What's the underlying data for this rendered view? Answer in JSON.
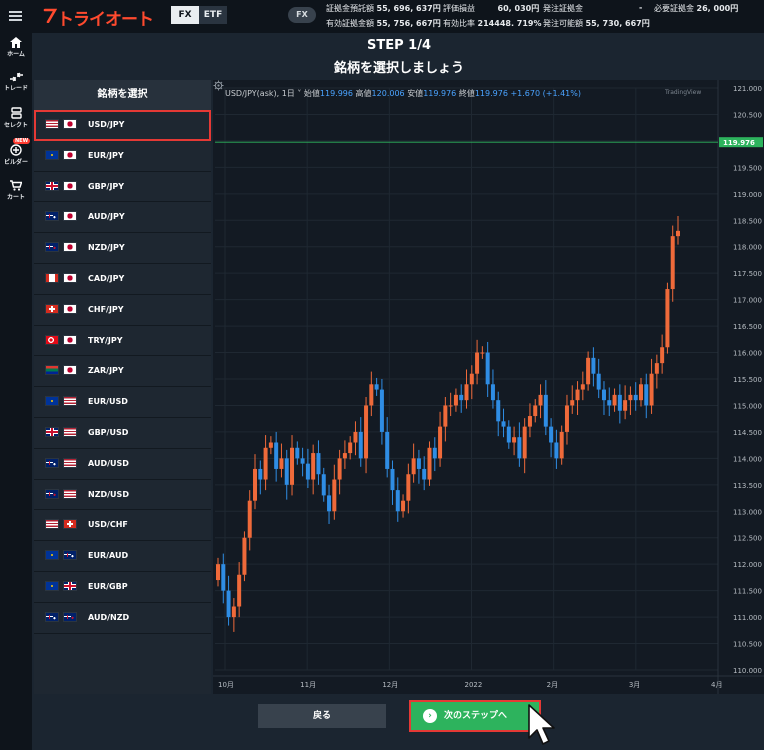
{
  "header": {
    "logo": "トライオート",
    "mode_tabs": [
      "FX",
      "ETF"
    ],
    "mode_pill": "FX",
    "account": {
      "row1": [
        {
          "label": "証拠金預託額",
          "value": "55, 696, 637円"
        },
        {
          "label": "評価損益",
          "value": "60, 030円"
        },
        {
          "label": "発注証拠金",
          "value": "-"
        },
        {
          "label": "必要証拠金",
          "value": "26, 000円"
        }
      ],
      "row2": [
        {
          "label": "有効証拠金額",
          "value": "55, 756, 667円"
        },
        {
          "label": "有効比率",
          "value": "214448. 719%"
        },
        {
          "label": "発注可能額",
          "value": "55, 730, 667円"
        }
      ]
    }
  },
  "nav": {
    "items": [
      {
        "label": "ホーム",
        "icon": "home-icon"
      },
      {
        "label": "トレード",
        "icon": "trade-icon"
      },
      {
        "label": "セレクト",
        "icon": "select-icon"
      },
      {
        "label": "ビルダー",
        "icon": "builder-icon",
        "badge": "NEW"
      },
      {
        "label": "カート",
        "icon": "cart-icon"
      }
    ]
  },
  "step": {
    "title": "STEP 1/4",
    "subtitle": "銘柄を選択しましょう"
  },
  "symbols": {
    "heading": "銘柄を選択",
    "selected_index": 0,
    "items": [
      {
        "label": "USD/JPY",
        "flags": [
          "us",
          "jp"
        ]
      },
      {
        "label": "EUR/JPY",
        "flags": [
          "eu",
          "jp"
        ]
      },
      {
        "label": "GBP/JPY",
        "flags": [
          "gb",
          "jp"
        ]
      },
      {
        "label": "AUD/JPY",
        "flags": [
          "au",
          "jp"
        ]
      },
      {
        "label": "NZD/JPY",
        "flags": [
          "nz",
          "jp"
        ]
      },
      {
        "label": "CAD/JPY",
        "flags": [
          "ca",
          "jp"
        ]
      },
      {
        "label": "CHF/JPY",
        "flags": [
          "ch",
          "jp"
        ]
      },
      {
        "label": "TRY/JPY",
        "flags": [
          "tr",
          "jp"
        ]
      },
      {
        "label": "ZAR/JPY",
        "flags": [
          "za",
          "jp"
        ]
      },
      {
        "label": "EUR/USD",
        "flags": [
          "eu",
          "us"
        ]
      },
      {
        "label": "GBP/USD",
        "flags": [
          "gb",
          "us"
        ]
      },
      {
        "label": "AUD/USD",
        "flags": [
          "au",
          "us"
        ]
      },
      {
        "label": "NZD/USD",
        "flags": [
          "nz",
          "us"
        ]
      },
      {
        "label": "USD/CHF",
        "flags": [
          "us",
          "ch"
        ]
      },
      {
        "label": "EUR/AUD",
        "flags": [
          "eu",
          "au"
        ]
      },
      {
        "label": "EUR/GBP",
        "flags": [
          "eu",
          "gb"
        ]
      },
      {
        "label": "AUD/NZD",
        "flags": [
          "au",
          "nz"
        ]
      }
    ]
  },
  "chart": {
    "symbol_label": "USD/JPY(ask), 1日",
    "open_label": "始値",
    "open": "119.996",
    "high_label": "高値",
    "high": "120.006",
    "low_label": "安値",
    "low": "119.976",
    "close_label": "終値",
    "close": "119.976",
    "change": "+1.670 (+1.41%)",
    "brand": "TradingView",
    "price_tag": "119.976",
    "colors": {
      "up": "#ef6a3a",
      "down": "#2f8de4",
      "last_line": "#2db35d",
      "background": "#131a23"
    }
  },
  "chart_data": {
    "type": "candlestick",
    "title": "",
    "ylim": [
      110.0,
      121.0
    ],
    "y_ticks": [
      "121.000",
      "120.500",
      "120.000",
      "119.500",
      "119.000",
      "118.500",
      "118.000",
      "117.500",
      "117.000",
      "116.500",
      "116.000",
      "115.500",
      "115.000",
      "114.500",
      "114.000",
      "113.500",
      "113.000",
      "112.500",
      "112.000",
      "111.500",
      "111.000",
      "110.500",
      "110.000"
    ],
    "x_ticks": [
      "10月",
      "11月",
      "12月",
      "2022",
      "2月",
      "3月",
      "4月"
    ],
    "last_price": 119.976,
    "grid": true,
    "series": [
      {
        "values": [
          112.0,
          111.5,
          111.0,
          111.2,
          111.8,
          112.5,
          113.2,
          113.8,
          113.6,
          114.2,
          114.3,
          113.8,
          114.0,
          113.5,
          114.2,
          114.0,
          113.9,
          113.6,
          114.1,
          113.7,
          113.3,
          113.0,
          113.6,
          114.0,
          114.1,
          114.3,
          114.5,
          114.0,
          115.0,
          115.4,
          115.3,
          114.5,
          113.8,
          113.4,
          113.0,
          113.2,
          113.7,
          114.0,
          113.8,
          113.6,
          114.2,
          114.0,
          114.6,
          115.0,
          115.0,
          115.2,
          115.1,
          115.4,
          115.6,
          116.0,
          116.0,
          115.4,
          115.1,
          114.7,
          114.6,
          114.3,
          114.4,
          114.0,
          114.6,
          114.8,
          115.0,
          115.2,
          114.6,
          114.3,
          114.0,
          114.5,
          115.0,
          115.1,
          115.3,
          115.4,
          115.9,
          115.6,
          115.3,
          115.1,
          115.0,
          115.2,
          114.9,
          115.1,
          115.2,
          115.1,
          115.4,
          115.0,
          115.6,
          115.8,
          116.1,
          117.2,
          118.2,
          118.3
        ]
      }
    ]
  },
  "buttons": {
    "back": "戻る",
    "next": "次のステップへ"
  }
}
